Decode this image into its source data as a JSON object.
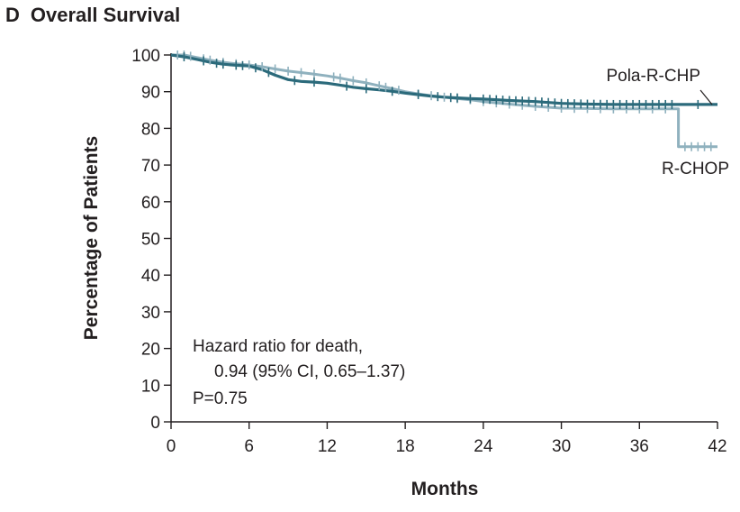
{
  "panel": {
    "letter": "D",
    "title": "Overall Survival"
  },
  "annotation": {
    "line1": "Hazard ratio for death,",
    "line2": "0.94 (95% CI, 0.65–1.37)",
    "line3": "P=0.75"
  },
  "colors": {
    "pola": "#2b6a7b",
    "rchop": "#8fb1be",
    "axis": "#231f20"
  },
  "chart_data": {
    "type": "line",
    "title": "Overall Survival",
    "xlabel": "Months",
    "ylabel": "Percentage of Patients",
    "xlim": [
      0,
      42
    ],
    "ylim": [
      0,
      100
    ],
    "xticks": [
      0,
      6,
      12,
      18,
      24,
      30,
      36,
      42
    ],
    "yticks": [
      0,
      10,
      20,
      30,
      40,
      50,
      60,
      70,
      80,
      90,
      100
    ],
    "legend": "direct labels at right end of curves",
    "grid": false,
    "series": [
      {
        "name": "Pola-R-CHP",
        "color": "#2b6a7b",
        "points": [
          [
            0,
            100
          ],
          [
            1,
            99.5
          ],
          [
            2,
            98.8
          ],
          [
            3,
            98
          ],
          [
            4,
            97.5
          ],
          [
            5,
            97.2
          ],
          [
            6,
            97
          ],
          [
            7,
            96
          ],
          [
            8,
            94.5
          ],
          [
            9,
            93.3
          ],
          [
            10,
            92.8
          ],
          [
            11,
            92.6
          ],
          [
            12,
            92.3
          ],
          [
            13,
            91.8
          ],
          [
            14,
            91.2
          ],
          [
            15,
            90.8
          ],
          [
            16,
            90.5
          ],
          [
            17,
            90.1
          ],
          [
            18,
            89.6
          ],
          [
            19,
            89.2
          ],
          [
            20,
            88.8
          ],
          [
            21,
            88.5
          ],
          [
            22,
            88.3
          ],
          [
            23,
            88.1
          ],
          [
            24,
            88
          ],
          [
            26,
            87.6
          ],
          [
            28,
            87.3
          ],
          [
            30,
            86.8
          ],
          [
            32,
            86.6
          ],
          [
            34,
            86.5
          ],
          [
            36,
            86.5
          ],
          [
            39,
            86.5
          ],
          [
            41,
            86.5
          ],
          [
            42,
            86.5
          ]
        ],
        "censor_x": [
          1,
          2.5,
          3.5,
          4,
          5,
          5.5,
          6.5,
          7.5,
          9.5,
          11,
          13.5,
          15,
          17,
          19,
          20.5,
          21.5,
          22,
          23,
          24,
          24.5,
          25,
          25.5,
          26,
          26.5,
          27,
          27.5,
          28,
          28.5,
          29,
          29.5,
          30,
          30.5,
          31,
          31.5,
          32,
          32.5,
          33,
          33.5,
          34,
          34.5,
          35,
          35.5,
          36,
          36.5,
          37,
          37.5,
          38,
          38.5,
          40.5
        ]
      },
      {
        "name": "R-CHOP",
        "color": "#8fb1be",
        "points": [
          [
            0,
            100
          ],
          [
            1,
            100
          ],
          [
            2,
            99.3
          ],
          [
            3,
            98.6
          ],
          [
            4,
            98
          ],
          [
            5,
            97.6
          ],
          [
            6,
            97.3
          ],
          [
            7,
            96.8
          ],
          [
            8,
            96.2
          ],
          [
            9,
            95.6
          ],
          [
            10,
            95.2
          ],
          [
            11,
            94.8
          ],
          [
            12,
            94.3
          ],
          [
            13,
            93.7
          ],
          [
            14,
            93
          ],
          [
            15,
            92.4
          ],
          [
            16,
            91.6
          ],
          [
            17,
            90.8
          ],
          [
            18,
            90
          ],
          [
            19,
            89.4
          ],
          [
            20,
            88.9
          ],
          [
            21,
            88.5
          ],
          [
            22,
            88.1
          ],
          [
            23,
            87.8
          ],
          [
            24,
            87.3
          ],
          [
            26,
            86.6
          ],
          [
            28,
            86
          ],
          [
            30,
            85.5
          ],
          [
            32,
            85.4
          ],
          [
            34,
            85.3
          ],
          [
            36,
            85.3
          ],
          [
            39,
            85.3
          ],
          [
            39,
            75
          ],
          [
            42,
            75
          ]
        ],
        "censor_x": [
          0.5,
          1,
          1.5,
          2.5,
          3,
          4,
          5,
          6,
          7,
          8,
          9,
          10,
          11,
          12.5,
          13,
          14,
          15,
          16,
          16.5,
          17.5,
          19,
          20,
          21,
          22,
          23,
          24,
          25,
          26,
          27,
          28,
          29,
          30,
          31,
          32,
          33,
          34,
          35,
          36,
          37,
          38,
          39.5,
          40,
          40.5,
          41,
          41.5
        ]
      }
    ]
  }
}
